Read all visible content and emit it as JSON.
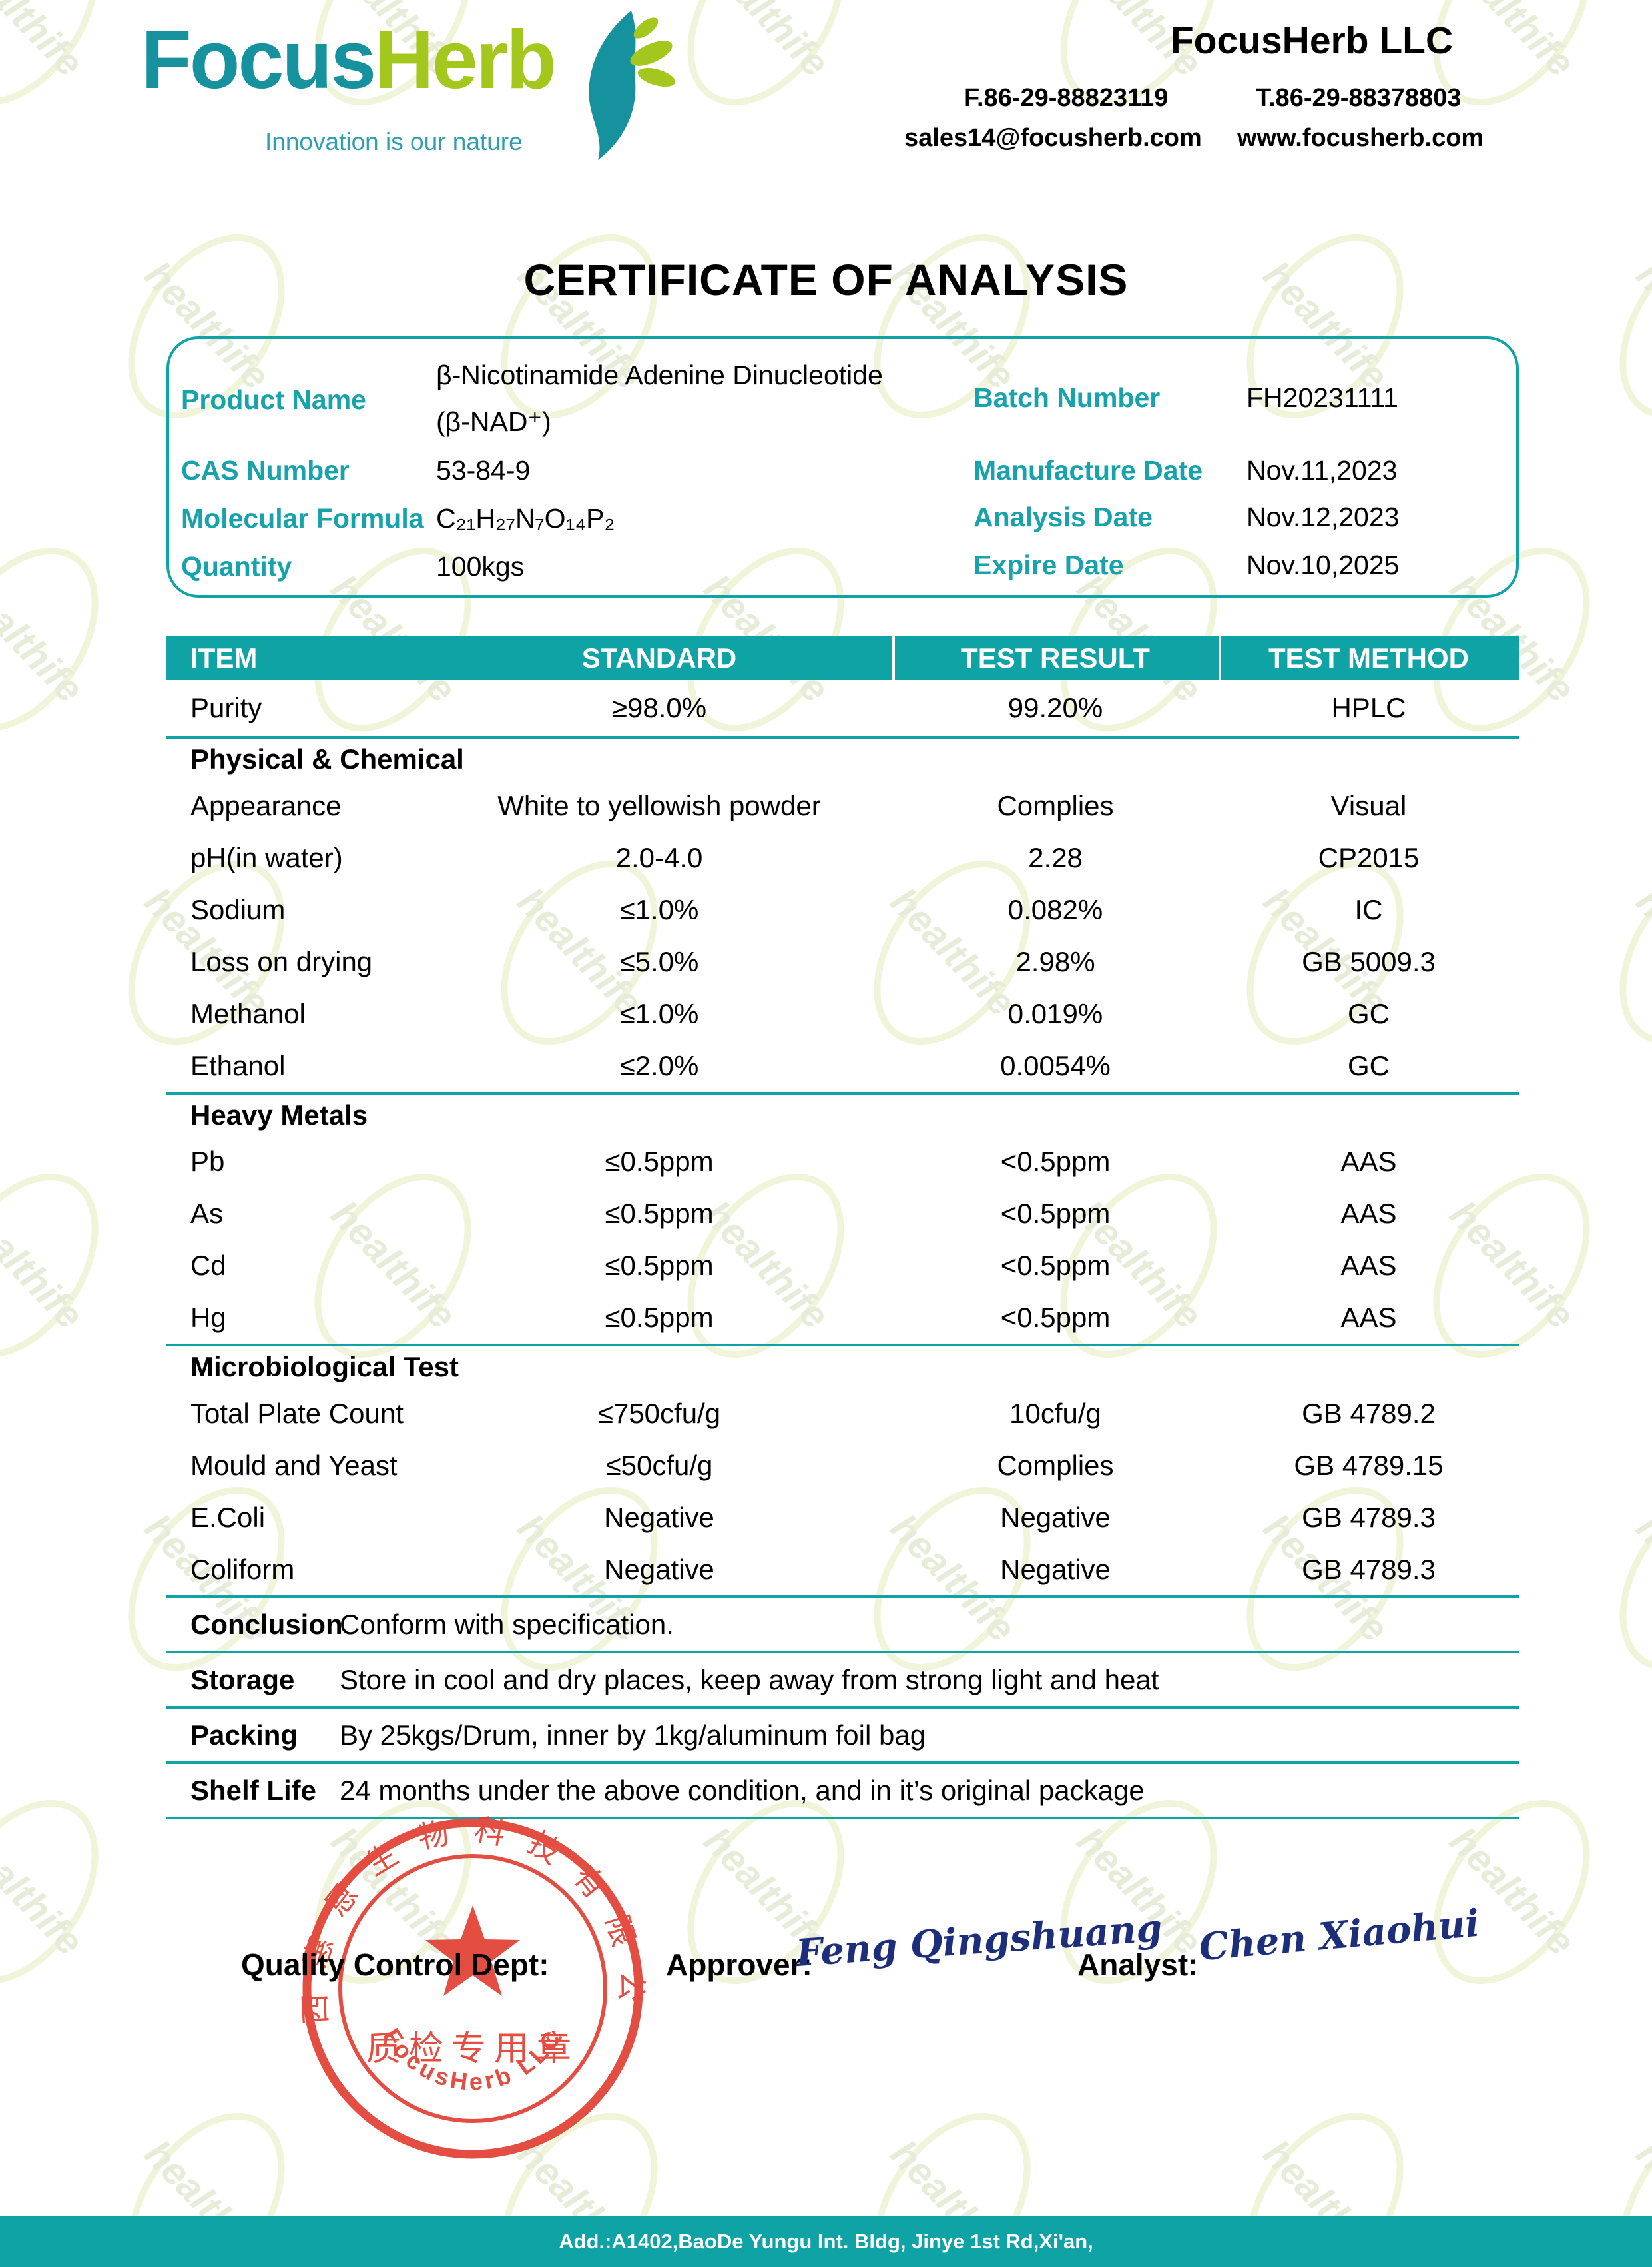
{
  "header": {
    "logo": {
      "focus": "Focus",
      "herb": "Herb",
      "tagline": "Innovation is our nature"
    },
    "company": "FocusHerb LLC",
    "fax": "F.86-29-88823119",
    "tel": "T.86-29-88378803",
    "email": "sales14@focusherb.com",
    "website": "www.focusherb.com"
  },
  "title": "CERTIFICATE OF ANALYSIS",
  "product_info": {
    "product_name_label": "Product Name",
    "product_name_line1": "β-Nicotinamide Adenine Dinucleotide",
    "product_name_line2": "(β-NAD⁺)",
    "cas_label": "CAS Number",
    "cas_value": "53-84-9",
    "formula_label": "Molecular Formula",
    "formula_value": "C₂₁H₂₇N₇O₁₄P₂",
    "quantity_label": "Quantity",
    "quantity_value": "100kgs",
    "batch_label": "Batch Number",
    "batch_value": "FH20231111",
    "mfg_label": "Manufacture Date",
    "mfg_value": "Nov.11,2023",
    "analysis_label": "Analysis Date",
    "analysis_value": "Nov.12,2023",
    "expire_label": "Expire Date",
    "expire_value": "Nov.10,2025"
  },
  "tests": {
    "columns": [
      "ITEM",
      "STANDARD",
      "TEST RESULT",
      "TEST METHOD"
    ],
    "rows": [
      {
        "type": "row",
        "tall": true,
        "item": "Purity",
        "standard": "≥98.0%",
        "result": "99.20%",
        "method": "HPLC",
        "divider_after": true
      },
      {
        "type": "section",
        "label": "Physical & Chemical"
      },
      {
        "type": "row",
        "item": "Appearance",
        "standard": "White to yellowish powder",
        "result": "Complies",
        "method": "Visual"
      },
      {
        "type": "row",
        "item": "pH(in water)",
        "standard": "2.0-4.0",
        "result": "2.28",
        "method": "CP2015"
      },
      {
        "type": "row",
        "item": "Sodium",
        "standard": "≤1.0%",
        "result": "0.082%",
        "method": "IC"
      },
      {
        "type": "row",
        "item": "Loss on drying",
        "standard": "≤5.0%",
        "result": "2.98%",
        "method": "GB 5009.3"
      },
      {
        "type": "row",
        "item": "Methanol",
        "standard": "≤1.0%",
        "result": "0.019%",
        "method": "GC"
      },
      {
        "type": "row",
        "item": "Ethanol",
        "standard": "≤2.0%",
        "result": "0.0054%",
        "method": "GC",
        "divider_after": true
      },
      {
        "type": "section",
        "label": "Heavy Metals"
      },
      {
        "type": "row",
        "item": "Pb",
        "standard": "≤0.5ppm",
        "result": "<0.5ppm",
        "method": "AAS"
      },
      {
        "type": "row",
        "item": "As",
        "standard": "≤0.5ppm",
        "result": "<0.5ppm",
        "method": "AAS"
      },
      {
        "type": "row",
        "item": "Cd",
        "standard": "≤0.5ppm",
        "result": "<0.5ppm",
        "method": "AAS"
      },
      {
        "type": "row",
        "item": "Hg",
        "standard": "≤0.5ppm",
        "result": "<0.5ppm",
        "method": "AAS",
        "divider_after": true
      },
      {
        "type": "section",
        "label": "Microbiological Test"
      },
      {
        "type": "row",
        "item": "Total Plate Count",
        "standard": "≤750cfu/g",
        "result": "10cfu/g",
        "method": "GB 4789.2"
      },
      {
        "type": "row",
        "item": "Mould and Yeast",
        "standard": "≤50cfu/g",
        "result": "Complies",
        "method": "GB 4789.15"
      },
      {
        "type": "row",
        "item": "E.Coli",
        "standard": "Negative",
        "result": "Negative",
        "method": "GB 4789.3"
      },
      {
        "type": "row",
        "item": "Coliform",
        "standard": "Negative",
        "result": "Negative",
        "method": "GB 4789.3",
        "divider_after": true
      }
    ]
  },
  "conclusion": {
    "rows": [
      {
        "label": "Conclusion",
        "value": "Conform with specification."
      },
      {
        "label": "Storage",
        "value": "Store in cool and dry places, keep away from strong light and heat"
      },
      {
        "label": "Packing",
        "value": "By 25kgs/Drum, inner by 1kg/aluminum foil bag"
      },
      {
        "label": "Shelf Life",
        "value": "24 months under the above condition, and in it’s original package"
      }
    ]
  },
  "signatures": {
    "qc_label": "Quality Control Dept:",
    "approver_label": "Approver:",
    "approver_signature": "Feng Qingshuang",
    "analyst_label": "Analyst:",
    "analyst_signature": "Chen Xiaohui"
  },
  "stamp": {
    "company_cn": "陕西惠恩生物科技有限公司",
    "center_cn": "质检专用章",
    "company_en": "FocusHerb  LLC",
    "color": "#e23b2e"
  },
  "watermark": {
    "text": "healthife"
  },
  "footer": {
    "address": "Add.:A1402,BaoDe Yungu Int. Bldg, Jinye 1st Rd,Xi'an,"
  },
  "colors": {
    "teal": "#0fa3a6",
    "label_teal": "#16a3ac",
    "logo_teal": "#16929e",
    "logo_green": "#a4c71e",
    "stamp_red": "#e23b2e",
    "signature_navy": "#1d2e7b"
  }
}
